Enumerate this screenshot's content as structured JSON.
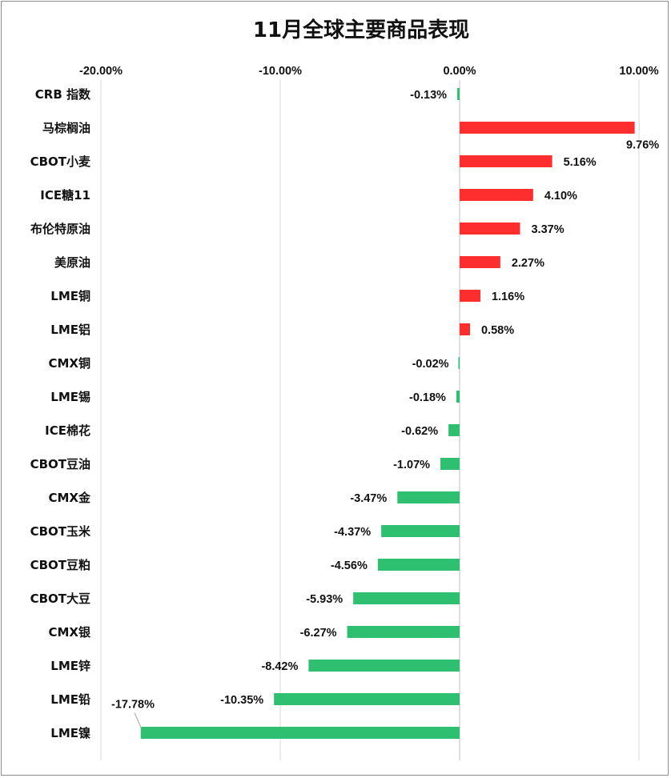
{
  "chart_data": {
    "type": "bar",
    "orientation": "horizontal",
    "title": "11月全球主要商品表现",
    "xlim": [
      -0.2,
      0.1
    ],
    "x_ticks": [
      -0.2,
      -0.1,
      0.0,
      0.1
    ],
    "x_tick_labels": [
      "-20.00%",
      "-10.00%",
      "0.00%",
      "10.00%"
    ],
    "axis_position": "top",
    "grid": true,
    "legend": "none",
    "categories": [
      "CRB 指数",
      "马棕榈油",
      "CBOT小麦",
      "ICE糖11",
      "布伦特原油",
      "美原油",
      "LME铜",
      "LME铝",
      "CMX铜",
      "LME锡",
      "ICE棉花",
      "CBOT豆油",
      "CMX金",
      "CBOT玉米",
      "CBOT豆粕",
      "CBOT大豆",
      "CMX银",
      "LME锌",
      "LME铅",
      "LME镍"
    ],
    "values": [
      -0.0013,
      0.0976,
      0.0516,
      0.041,
      0.0337,
      0.0227,
      0.0116,
      0.0058,
      -0.0002,
      -0.0018,
      -0.0062,
      -0.0107,
      -0.0347,
      -0.0437,
      -0.0456,
      -0.0593,
      -0.0627,
      -0.0842,
      -0.1035,
      -0.1778
    ],
    "data_labels": [
      "-0.13%",
      "9.76%",
      "5.16%",
      "4.10%",
      "3.37%",
      "2.27%",
      "1.16%",
      "0.58%",
      "-0.02%",
      "-0.18%",
      "-0.62%",
      "-1.07%",
      "-3.47%",
      "-4.37%",
      "-4.56%",
      "-5.93%",
      "-6.27%",
      "-8.42%",
      "-10.35%",
      "-17.78%"
    ],
    "colors": {
      "positive": "#ff2e2e",
      "negative": "#2fbf71",
      "grid": "#d9d9d9",
      "zero_line": "#bfbfbf"
    }
  }
}
